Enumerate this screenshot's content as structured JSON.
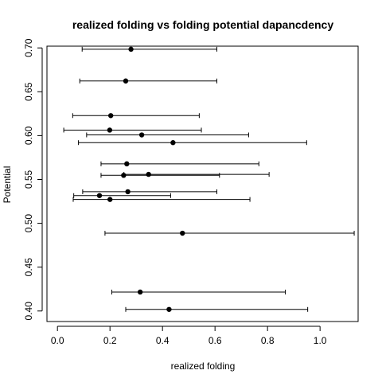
{
  "chart_data": {
    "type": "scatter",
    "title": "realized folding vs folding potential dapancdency",
    "xlabel": "realized folding",
    "ylabel": "Potential",
    "xlim": [
      -0.04,
      1.145
    ],
    "ylim": [
      0.388,
      0.702
    ],
    "xticks": [
      0.0,
      0.2,
      0.4,
      0.6,
      0.8,
      1.0
    ],
    "xtick_labels": [
      "0.0",
      "0.2",
      "0.4",
      "0.6",
      "0.8",
      "1.0"
    ],
    "yticks": [
      0.4,
      0.45,
      0.5,
      0.55,
      0.6,
      0.65,
      0.7
    ],
    "ytick_labels": [
      "0.40",
      "0.45",
      "0.50",
      "0.55",
      "0.60",
      "0.65",
      "0.70"
    ],
    "error_bars": "horizontal",
    "points": [
      {
        "x": 0.28,
        "y": 0.6985,
        "xmin": 0.094,
        "xmax": 0.607
      },
      {
        "x": 0.26,
        "y": 0.6623,
        "xmin": 0.085,
        "xmax": 0.607
      },
      {
        "x": 0.203,
        "y": 0.6228,
        "xmin": 0.058,
        "xmax": 0.54
      },
      {
        "x": 0.199,
        "y": 0.6063,
        "xmin": 0.024,
        "xmax": 0.548
      },
      {
        "x": 0.321,
        "y": 0.6008,
        "xmin": 0.111,
        "xmax": 0.728
      },
      {
        "x": 0.44,
        "y": 0.592,
        "xmin": 0.08,
        "xmax": 0.949
      },
      {
        "x": 0.264,
        "y": 0.5678,
        "xmin": 0.166,
        "xmax": 0.767
      },
      {
        "x": 0.347,
        "y": 0.5558,
        "xmin": 0.253,
        "xmax": 0.806
      },
      {
        "x": 0.252,
        "y": 0.5547,
        "xmin": 0.166,
        "xmax": 0.617
      },
      {
        "x": 0.268,
        "y": 0.536,
        "xmin": 0.096,
        "xmax": 0.607
      },
      {
        "x": 0.16,
        "y": 0.5316,
        "xmin": 0.062,
        "xmax": 0.431
      },
      {
        "x": 0.2,
        "y": 0.5272,
        "xmin": 0.06,
        "xmax": 0.733
      },
      {
        "x": 0.476,
        "y": 0.4887,
        "xmin": 0.181,
        "xmax": 1.13
      },
      {
        "x": 0.315,
        "y": 0.4216,
        "xmin": 0.207,
        "xmax": 0.868
      },
      {
        "x": 0.425,
        "y": 0.4018,
        "xmin": 0.26,
        "xmax": 0.953
      }
    ]
  }
}
